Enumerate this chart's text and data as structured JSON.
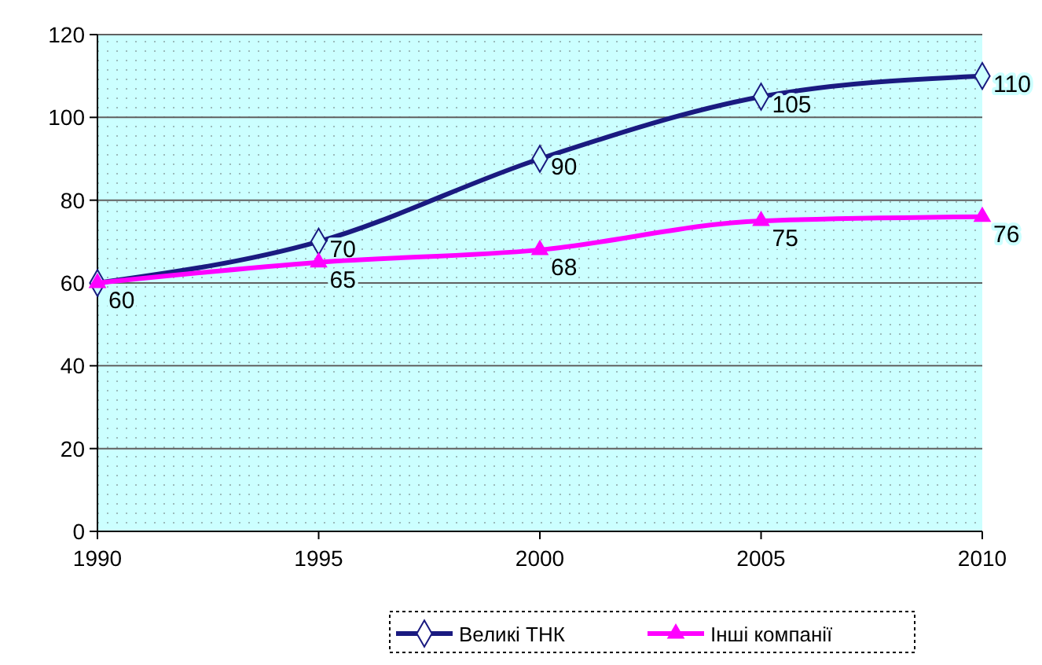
{
  "chart_data": {
    "type": "line",
    "x": [
      1990,
      1995,
      2000,
      2005,
      2010
    ],
    "xlim": [
      1990,
      2010
    ],
    "xticks": [
      1990,
      1995,
      2000,
      2005,
      2010
    ],
    "ylim": [
      0,
      120
    ],
    "yticks": [
      0,
      20,
      40,
      60,
      80,
      100,
      120
    ],
    "grid": "y",
    "legend": "bottom",
    "series": [
      {
        "name": "Великі ТНК",
        "color": "#1a1a80",
        "values": [
          60,
          70,
          90,
          105,
          110
        ],
        "value_labels": [
          null,
          "70",
          "90",
          "105",
          "110"
        ],
        "marker": "diamond"
      },
      {
        "name": "Інші компанії",
        "color": "#ff00ff",
        "values": [
          60,
          65,
          68,
          75,
          76
        ],
        "value_labels": [
          "60",
          "65",
          "68",
          "75",
          "76"
        ],
        "marker": "triangle"
      }
    ]
  }
}
